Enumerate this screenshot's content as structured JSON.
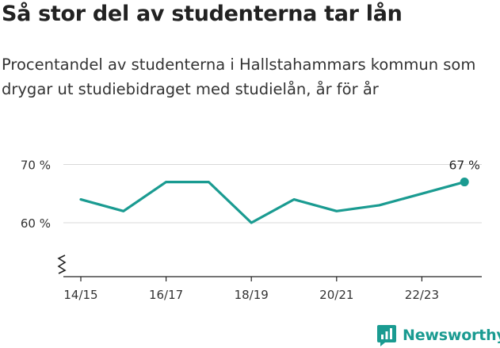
{
  "title": "Så stor del av studenterna tar lån",
  "subtitle": "Procentandel av studenterna i Hallstahammars kommun som drygar ut studiebidraget med studielån, år för år",
  "brand": {
    "name": "Newsworthy",
    "icon": "newsworthy-logo-icon",
    "color": "#1a9b91"
  },
  "chart_data": {
    "type": "line",
    "x": [
      "14/15",
      "15/16",
      "16/17",
      "17/18",
      "18/19",
      "19/20",
      "20/21",
      "21/22",
      "22/23",
      "23/24"
    ],
    "x_tick_labels": [
      "14/15",
      "16/17",
      "18/19",
      "20/21",
      "22/23"
    ],
    "series": [
      {
        "values": [
          64,
          62,
          67,
          67,
          60,
          64,
          62,
          63,
          65,
          67
        ],
        "color": "#1a9b91"
      }
    ],
    "y_ticks": [
      60,
      70
    ],
    "y_tick_labels": [
      "60 %",
      "70 %"
    ],
    "ylim": [
      51,
      70
    ],
    "axis_break": true,
    "grid": true,
    "end_label": "67 %"
  }
}
